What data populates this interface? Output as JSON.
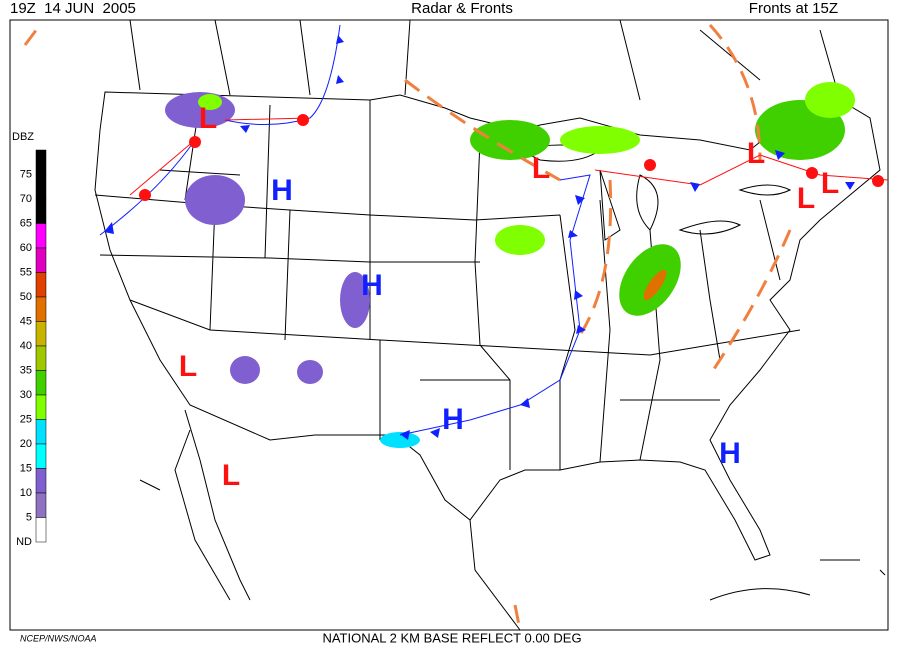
{
  "header": {
    "left": "19Z  14 JUN  2005",
    "center": "Radar & Fronts",
    "right": "Fronts at 15Z"
  },
  "legend": {
    "title": "DBZ",
    "levels": [
      {
        "label": "75",
        "color": "#000000"
      },
      {
        "label": "70",
        "color": "#000000"
      },
      {
        "label": "65",
        "color": "#000000"
      },
      {
        "label": "60",
        "color": "#ff00ff"
      },
      {
        "label": "55",
        "color": "#e000c0"
      },
      {
        "label": "50",
        "color": "#e04000"
      },
      {
        "label": "45",
        "color": "#e07000"
      },
      {
        "label": "40",
        "color": "#c8b400"
      },
      {
        "label": "35",
        "color": "#a0c800"
      },
      {
        "label": "30",
        "color": "#40d000"
      },
      {
        "label": "25",
        "color": "#80ff00"
      },
      {
        "label": "20",
        "color": "#00e0ff"
      },
      {
        "label": "15",
        "color": "#00ffff"
      },
      {
        "label": "10",
        "color": "#8060d0"
      },
      {
        "label": "5",
        "color": "#9070c0"
      },
      {
        "label": "ND",
        "color": "#ffffff"
      }
    ]
  },
  "pressure_centers": [
    {
      "label": "L",
      "color": "#ff1010"
    },
    {
      "label": "L",
      "color": "#ff1010"
    },
    {
      "label": "L",
      "color": "#ff1010"
    },
    {
      "label": "L",
      "color": "#ff1010"
    },
    {
      "label": "L",
      "color": "#ff1010"
    },
    {
      "label": "L",
      "color": "#ff1010"
    },
    {
      "label": "L",
      "color": "#ff1010"
    },
    {
      "label": "H",
      "color": "#1020ff"
    },
    {
      "label": "H",
      "color": "#1020ff"
    },
    {
      "label": "H",
      "color": "#1020ff"
    },
    {
      "label": "H",
      "color": "#1020ff"
    }
  ],
  "footer": {
    "credit": "NCEP/NWS/NOAA",
    "product": "NATIONAL 2 KM BASE REFLECT 0.00 DEG"
  }
}
